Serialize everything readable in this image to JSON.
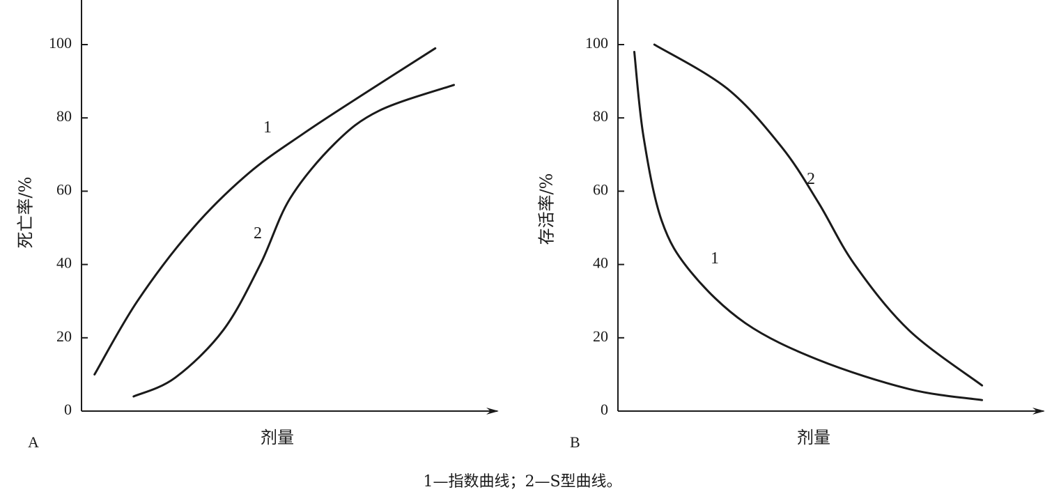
{
  "caption": "1—指数曲线；2—S型曲线。",
  "chart_data": [
    {
      "type": "line",
      "panel_label": "A",
      "xlabel": "剂量",
      "ylabel": "死亡率/%",
      "ylim": [
        0,
        100
      ],
      "yticks": [
        "0",
        "20",
        "40",
        "60",
        "80",
        "100"
      ],
      "xlim": [
        0,
        11
      ],
      "grid": false,
      "legend": "none",
      "series": [
        {
          "name": "1",
          "x": [
            0.35,
            1.5,
            3.0,
            4.5,
            6.0,
            7.5,
            9.5
          ],
          "y": [
            10,
            30,
            50,
            65,
            76,
            86,
            99
          ]
        },
        {
          "name": "2",
          "x": [
            1.4,
            2.5,
            3.8,
            4.8,
            5.6,
            6.8,
            8.0,
            10.0
          ],
          "y": [
            4,
            9,
            22,
            40,
            58,
            73,
            82,
            89
          ]
        }
      ]
    },
    {
      "type": "line",
      "panel_label": "B",
      "xlabel": "剂量",
      "ylabel": "存活率/%",
      "ylim": [
        0,
        100
      ],
      "yticks": [
        "0",
        "20",
        "40",
        "60",
        "80",
        "100"
      ],
      "xlim": [
        0,
        11.5
      ],
      "grid": false,
      "legend": "none",
      "series": [
        {
          "name": "1",
          "x": [
            0.45,
            0.7,
            1.2,
            2.0,
            3.5,
            5.5,
            8.0,
            10.0
          ],
          "y": [
            98,
            75,
            52,
            38,
            24,
            14,
            6,
            3
          ]
        },
        {
          "name": "2",
          "x": [
            1.0,
            3.0,
            4.5,
            5.5,
            6.5,
            8.0,
            10.0
          ],
          "y": [
            100,
            88,
            72,
            57,
            40,
            22,
            7
          ]
        }
      ]
    }
  ]
}
